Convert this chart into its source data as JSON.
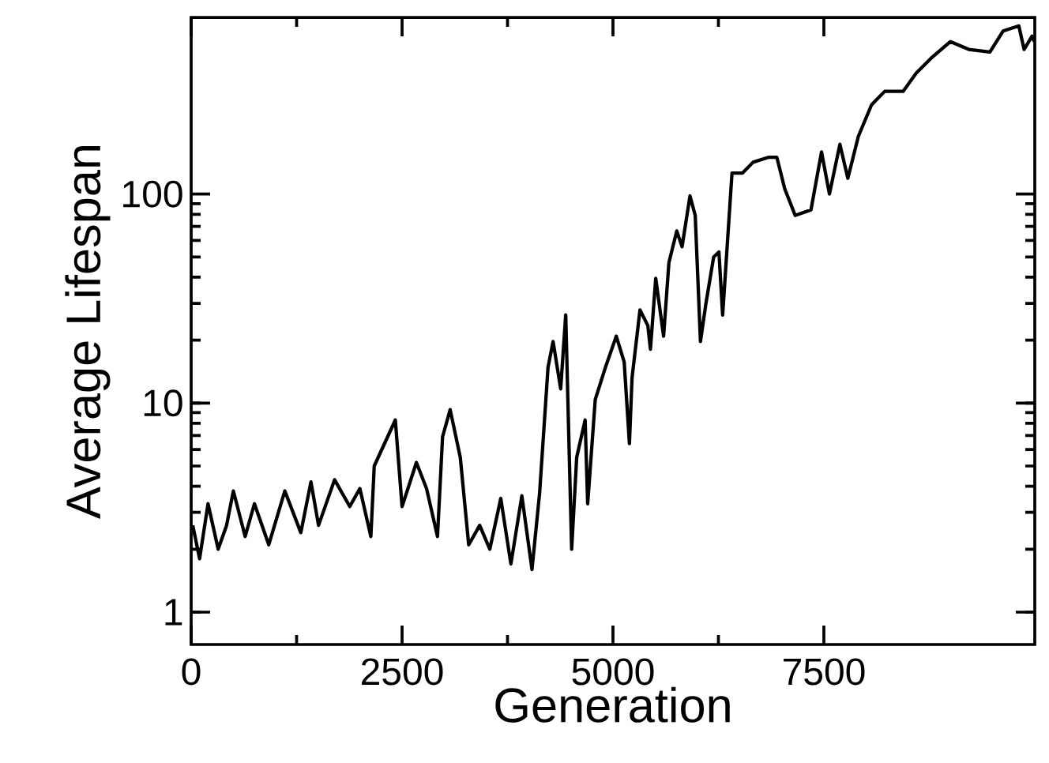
{
  "chart_data": {
    "type": "line",
    "xlabel": "Generation",
    "ylabel": "Average Lifespan",
    "color": "#000000",
    "x": [
      19,
      100,
      200,
      320,
      420,
      500,
      640,
      750,
      920,
      1110,
      1300,
      1420,
      1510,
      1700,
      1880,
      2000,
      2130,
      2170,
      2420,
      2500,
      2670,
      2790,
      2920,
      2980,
      3070,
      3190,
      3290,
      3420,
      3540,
      3670,
      3790,
      3920,
      4040,
      4130,
      4230,
      4290,
      4380,
      4440,
      4510,
      4570,
      4670,
      4700,
      4790,
      4910,
      5039,
      5133,
      5195,
      5226,
      5320,
      5413,
      5444,
      5507,
      5600,
      5663,
      5756,
      5819,
      5913,
      5975,
      6037,
      6100,
      6193,
      6256,
      6300,
      6411,
      6536,
      6661,
      6848,
      6942,
      7036,
      7160,
      7347,
      7472,
      7566,
      7690,
      7784,
      7909,
      8065,
      8221,
      8439,
      8595,
      8782,
      9000,
      9218,
      9468,
      9624,
      9811,
      9873,
      9967,
      9995
    ],
    "values": [
      2.6,
      1.8,
      3.3,
      2.0,
      2.6,
      3.8,
      2.3,
      3.3,
      2.1,
      3.8,
      2.4,
      4.2,
      2.6,
      4.3,
      3.2,
      3.9,
      2.3,
      5.0,
      8.3,
      3.2,
      5.2,
      3.9,
      2.3,
      6.9,
      9.3,
      5.5,
      2.1,
      2.6,
      2.0,
      3.5,
      1.7,
      3.6,
      1.6,
      3.7,
      14.8,
      19.7,
      11.7,
      26.4,
      2.0,
      5.5,
      8.3,
      3.3,
      10.4,
      14.8,
      20.9,
      15.7,
      6.4,
      13.2,
      27.9,
      23.5,
      18.1,
      39.5,
      20.9,
      47,
      66.6,
      56,
      98,
      79,
      19.7,
      29.6,
      49.9,
      52.8,
      26.4,
      126,
      126,
      142,
      150,
      150,
      106,
      79,
      84,
      159,
      100,
      173,
      119,
      189,
      267,
      310,
      310,
      379,
      451,
      536,
      492,
      478,
      602,
      638,
      492,
      569,
      536
    ],
    "xlim": [
      0,
      10000
    ],
    "ylim": [
      0.7,
      700
    ],
    "xticks": [
      0,
      2500,
      5000,
      7500
    ],
    "yticks": [
      1,
      10,
      100
    ],
    "log": true,
    "grid": false
  }
}
